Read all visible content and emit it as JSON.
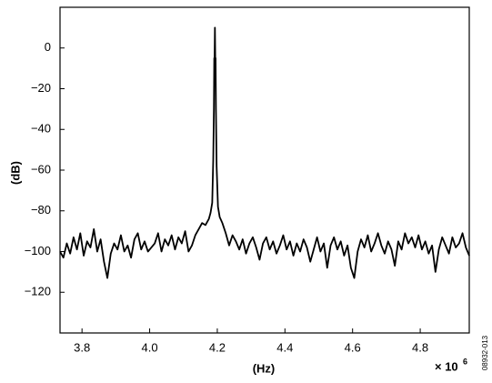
{
  "chart_data": {
    "type": "line",
    "y_label": "(dB)",
    "x_label": "(Hz)",
    "x_scale_label": "× 10",
    "x_scale_exponent": "6",
    "figure_id": "08932-013",
    "xlim": [
      3.735,
      4.945
    ],
    "ylim": [
      -140,
      20
    ],
    "xticks": [
      3.8,
      {
        "value": 4,
        "label": "4.0"
      },
      4.2,
      4.4,
      4.6,
      4.8
    ],
    "yticks": [
      0,
      {
        "value": -20,
        "label": "−20"
      },
      {
        "value": -40,
        "label": "−40"
      },
      {
        "value": -60,
        "label": "−60"
      },
      {
        "value": -80,
        "label": "−80"
      },
      {
        "value": -100,
        "label": "−100"
      },
      {
        "value": -120,
        "label": "−120"
      }
    ],
    "grid": false,
    "series": [
      {
        "color": "#000000",
        "x": [
          3.735,
          3.745,
          3.755,
          3.765,
          3.775,
          3.785,
          3.795,
          3.805,
          3.815,
          3.825,
          3.835,
          3.845,
          3.855,
          3.865,
          3.875,
          3.885,
          3.895,
          3.905,
          3.915,
          3.925,
          3.935,
          3.945,
          3.955,
          3.965,
          3.975,
          3.985,
          3.995,
          4.005,
          4.015,
          4.025,
          4.035,
          4.045,
          4.055,
          4.065,
          4.075,
          4.085,
          4.095,
          4.105,
          4.115,
          4.125,
          4.135,
          4.145,
          4.155,
          4.165,
          4.175,
          4.18,
          4.185,
          4.188,
          4.19,
          4.191,
          4.192,
          4.193,
          4.194,
          4.195,
          4.196,
          4.198,
          4.202,
          4.207,
          4.215,
          4.225,
          4.235,
          4.245,
          4.255,
          4.265,
          4.275,
          4.285,
          4.295,
          4.305,
          4.315,
          4.325,
          4.335,
          4.345,
          4.355,
          4.365,
          4.375,
          4.385,
          4.395,
          4.405,
          4.415,
          4.425,
          4.435,
          4.445,
          4.455,
          4.465,
          4.475,
          4.485,
          4.495,
          4.505,
          4.515,
          4.525,
          4.535,
          4.545,
          4.555,
          4.565,
          4.575,
          4.585,
          4.595,
          4.605,
          4.615,
          4.625,
          4.635,
          4.645,
          4.655,
          4.665,
          4.675,
          4.685,
          4.695,
          4.705,
          4.715,
          4.725,
          4.735,
          4.745,
          4.755,
          4.765,
          4.775,
          4.785,
          4.795,
          4.805,
          4.815,
          4.825,
          4.835,
          4.845,
          4.855,
          4.865,
          4.875,
          4.885,
          4.895,
          4.905,
          4.915,
          4.925,
          4.935,
          4.945
        ],
        "values": [
          -100,
          -103,
          -96,
          -101,
          -93,
          -99,
          -91,
          -102,
          -95,
          -98,
          -89,
          -100,
          -94,
          -105,
          -113,
          -101,
          -96,
          -99,
          -92,
          -100,
          -97,
          -103,
          -94,
          -91,
          -99,
          -95,
          -100,
          -98,
          -96,
          -91,
          -100,
          -94,
          -97,
          -92,
          -99,
          -93,
          -96,
          -90,
          -100,
          -97,
          -92,
          -89,
          -86,
          -87,
          -84,
          -81,
          -76,
          -55,
          -30,
          -5,
          -5,
          10,
          -5,
          -5,
          -30,
          -58,
          -78,
          -83,
          -86,
          -91,
          -97,
          -92,
          -95,
          -99,
          -94,
          -101,
          -96,
          -93,
          -98,
          -104,
          -96,
          -93,
          -99,
          -95,
          -101,
          -97,
          -92,
          -99,
          -95,
          -102,
          -96,
          -100,
          -94,
          -98,
          -105,
          -99,
          -93,
          -100,
          -96,
          -108,
          -97,
          -93,
          -99,
          -95,
          -102,
          -97,
          -108,
          -113,
          -100,
          -94,
          -98,
          -92,
          -100,
          -96,
          -91,
          -97,
          -101,
          -95,
          -99,
          -107,
          -95,
          -99,
          -91,
          -96,
          -93,
          -98,
          -92,
          -99,
          -95,
          -101,
          -97,
          -110,
          -99,
          -93,
          -97,
          -101,
          -93,
          -98,
          -96,
          -91,
          -98,
          -102
        ]
      }
    ]
  }
}
